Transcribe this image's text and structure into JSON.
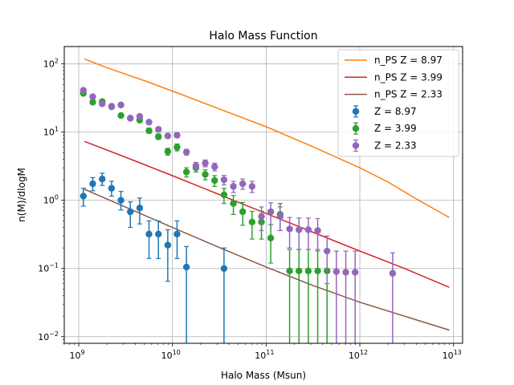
{
  "chart_data": {
    "type": "scatter",
    "title": "Halo Mass Function",
    "xlabel": "Halo Mass (Msun)",
    "ylabel": "n(M)/dlogM",
    "xscale": "log",
    "yscale": "log",
    "xlim": [
      700000000.0,
      12500000000000.0
    ],
    "ylim": [
      0.008,
      180
    ],
    "grid": true,
    "legend_position": "top-right",
    "x_ticks": [
      {
        "value": 1000000000.0,
        "base": "10",
        "exp": "9"
      },
      {
        "value": 10000000000.0,
        "base": "10",
        "exp": "10"
      },
      {
        "value": 100000000000.0,
        "base": "10",
        "exp": "11"
      },
      {
        "value": 1000000000000.0,
        "base": "10",
        "exp": "12"
      },
      {
        "value": 10000000000000.0,
        "base": "10",
        "exp": "13"
      }
    ],
    "y_ticks": [
      {
        "value": 0.01,
        "base": "10",
        "exp": "−2"
      },
      {
        "value": 0.1,
        "base": "10",
        "exp": "−1"
      },
      {
        "value": 1,
        "base": "10",
        "exp": "0"
      },
      {
        "value": 10,
        "base": "10",
        "exp": "1"
      },
      {
        "value": 100,
        "base": "10",
        "exp": "2"
      }
    ],
    "lines": [
      {
        "name": "n_PS Z = 8.97",
        "color": "#ff7f0e",
        "x": [
          1150000000.0,
          2000000000.0,
          5000000000.0,
          10000000000.0,
          30000000000.0,
          100000000000.0,
          300000000000.0,
          1000000000000.0,
          2000000000000.0,
          4000000000000.0,
          9000000000000.0
        ],
        "y": [
          118,
          88,
          57,
          40,
          22.5,
          12,
          6.3,
          3.0,
          1.85,
          1.05,
          0.56
        ]
      },
      {
        "name": "n_PS Z = 3.99",
        "color": "#d62728",
        "x": [
          1150000000.0,
          3000000000.0,
          10000000000.0,
          30000000000.0,
          100000000000.0,
          300000000000.0,
          1000000000000.0,
          3000000000000.0,
          9000000000000.0
        ],
        "y": [
          7.3,
          4.4,
          2.3,
          1.25,
          0.64,
          0.35,
          0.18,
          0.1,
          0.053
        ]
      },
      {
        "name": "n_PS Z = 2.33",
        "color": "#8c564b",
        "x": [
          1150000000.0,
          3000000000.0,
          10000000000.0,
          30000000000.0,
          100000000000.0,
          300000000000.0,
          1000000000000.0,
          3000000000000.0,
          9000000000000.0
        ],
        "y": [
          1.45,
          0.82,
          0.4,
          0.21,
          0.105,
          0.058,
          0.032,
          0.02,
          0.0125
        ]
      }
    ],
    "series": [
      {
        "name": "Z = 8.97",
        "color": "#1f77b4",
        "points": [
          {
            "x": 1120000000.0,
            "y": 1.15,
            "lo": 0.82,
            "hi": 1.5
          },
          {
            "x": 1410000000.0,
            "y": 1.75,
            "lo": 1.38,
            "hi": 2.15
          },
          {
            "x": 1780000000.0,
            "y": 2.05,
            "lo": 1.65,
            "hi": 2.5
          },
          {
            "x": 2240000000.0,
            "y": 1.5,
            "lo": 1.15,
            "hi": 1.9
          },
          {
            "x": 2820000000.0,
            "y": 1.0,
            "lo": 0.72,
            "hi": 1.35
          },
          {
            "x": 3550000000.0,
            "y": 0.68,
            "lo": 0.4,
            "hi": 0.95
          },
          {
            "x": 4470000000.0,
            "y": 0.77,
            "lo": 0.45,
            "hi": 1.08
          },
          {
            "x": 5620000000.0,
            "y": 0.32,
            "lo": 0.14,
            "hi": 0.5
          },
          {
            "x": 7080000000.0,
            "y": 0.32,
            "lo": 0.14,
            "hi": 0.5
          },
          {
            "x": 8910000000.0,
            "y": 0.22,
            "lo": 0.065,
            "hi": 0.37
          },
          {
            "x": 11200000000.0,
            "y": 0.32,
            "lo": 0.14,
            "hi": 0.5
          },
          {
            "x": 14100000000.0,
            "y": 0.105,
            "lo": 0.008,
            "hi": 0.21
          },
          {
            "x": 35500000000.0,
            "y": 0.1,
            "lo": 0.008,
            "hi": 0.2
          }
        ]
      },
      {
        "name": "Z = 3.99",
        "color": "#2ca02c",
        "points": [
          {
            "x": 1120000000.0,
            "y": 37,
            "lo": 35,
            "hi": 39
          },
          {
            "x": 1410000000.0,
            "y": 27.5,
            "lo": 26,
            "hi": 29
          },
          {
            "x": 1780000000.0,
            "y": 28,
            "lo": 26.5,
            "hi": 29.5
          },
          {
            "x": 2240000000.0,
            "y": 23.5,
            "lo": 22,
            "hi": 25
          },
          {
            "x": 2820000000.0,
            "y": 17.5,
            "lo": 16.5,
            "hi": 18.5
          },
          {
            "x": 3550000000.0,
            "y": 16,
            "lo": 15,
            "hi": 17
          },
          {
            "x": 4470000000.0,
            "y": 15,
            "lo": 14,
            "hi": 16
          },
          {
            "x": 5620000000.0,
            "y": 10.5,
            "lo": 9.6,
            "hi": 11.4
          },
          {
            "x": 7080000000.0,
            "y": 8.6,
            "lo": 7.8,
            "hi": 9.4
          },
          {
            "x": 8910000000.0,
            "y": 5.2,
            "lo": 4.6,
            "hi": 5.8
          },
          {
            "x": 11200000000.0,
            "y": 6.0,
            "lo": 5.3,
            "hi": 6.7
          },
          {
            "x": 14100000000.0,
            "y": 2.6,
            "lo": 2.2,
            "hi": 3.0
          },
          {
            "x": 17800000000.0,
            "y": 3.0,
            "lo": 2.6,
            "hi": 3.4
          },
          {
            "x": 22400000000.0,
            "y": 2.4,
            "lo": 2.0,
            "hi": 2.8
          },
          {
            "x": 28200000000.0,
            "y": 1.95,
            "lo": 1.6,
            "hi": 2.3
          },
          {
            "x": 35500000000.0,
            "y": 1.2,
            "lo": 0.9,
            "hi": 1.5
          },
          {
            "x": 44700000000.0,
            "y": 0.9,
            "lo": 0.62,
            "hi": 1.18
          },
          {
            "x": 56200000000.0,
            "y": 0.68,
            "lo": 0.43,
            "hi": 0.93
          },
          {
            "x": 70800000000.0,
            "y": 0.48,
            "lo": 0.27,
            "hi": 0.69
          },
          {
            "x": 89100000000.0,
            "y": 0.48,
            "lo": 0.27,
            "hi": 0.69
          },
          {
            "x": 112000000000.0,
            "y": 0.28,
            "lo": 0.12,
            "hi": 0.44
          },
          {
            "x": 141000000000.0,
            "y": 0.62,
            "lo": 0.36,
            "hi": 0.9
          },
          {
            "x": 178000000000.0,
            "y": 0.092,
            "lo": 0.008,
            "hi": 0.19
          },
          {
            "x": 224000000000.0,
            "y": 0.092,
            "lo": 0.008,
            "hi": 0.19
          },
          {
            "x": 282000000000.0,
            "y": 0.092,
            "lo": 0.008,
            "hi": 0.19
          },
          {
            "x": 355000000000.0,
            "y": 0.092,
            "lo": 0.008,
            "hi": 0.19
          },
          {
            "x": 447000000000.0,
            "y": 0.092,
            "lo": 0.008,
            "hi": 0.19
          }
        ]
      },
      {
        "name": "Z = 2.33",
        "color": "#9467bd",
        "points": [
          {
            "x": 1120000000.0,
            "y": 41,
            "lo": 39,
            "hi": 43
          },
          {
            "x": 1410000000.0,
            "y": 33,
            "lo": 31.5,
            "hi": 34.5
          },
          {
            "x": 1780000000.0,
            "y": 26,
            "lo": 24.5,
            "hi": 27.5
          },
          {
            "x": 2240000000.0,
            "y": 24,
            "lo": 22.5,
            "hi": 25.5
          },
          {
            "x": 2820000000.0,
            "y": 25,
            "lo": 23.5,
            "hi": 26.5
          },
          {
            "x": 3550000000.0,
            "y": 16,
            "lo": 15,
            "hi": 17
          },
          {
            "x": 4470000000.0,
            "y": 17,
            "lo": 16,
            "hi": 18
          },
          {
            "x": 5620000000.0,
            "y": 14,
            "lo": 13,
            "hi": 15
          },
          {
            "x": 7080000000.0,
            "y": 11,
            "lo": 10.2,
            "hi": 11.8
          },
          {
            "x": 8910000000.0,
            "y": 8.8,
            "lo": 8.1,
            "hi": 9.5
          },
          {
            "x": 11200000000.0,
            "y": 9.0,
            "lo": 8.3,
            "hi": 9.7
          },
          {
            "x": 14100000000.0,
            "y": 5.1,
            "lo": 4.6,
            "hi": 5.6
          },
          {
            "x": 17800000000.0,
            "y": 3.2,
            "lo": 2.8,
            "hi": 3.6
          },
          {
            "x": 22400000000.0,
            "y": 3.5,
            "lo": 3.1,
            "hi": 3.9
          },
          {
            "x": 28200000000.0,
            "y": 3.1,
            "lo": 2.7,
            "hi": 3.5
          },
          {
            "x": 35500000000.0,
            "y": 2.0,
            "lo": 1.68,
            "hi": 2.32
          },
          {
            "x": 44700000000.0,
            "y": 1.6,
            "lo": 1.3,
            "hi": 1.9
          },
          {
            "x": 56200000000.0,
            "y": 1.75,
            "lo": 1.45,
            "hi": 2.05
          },
          {
            "x": 70800000000.0,
            "y": 1.6,
            "lo": 1.3,
            "hi": 1.9
          },
          {
            "x": 89100000000.0,
            "y": 0.58,
            "lo": 0.36,
            "hi": 0.8
          },
          {
            "x": 112000000000.0,
            "y": 0.68,
            "lo": 0.44,
            "hi": 0.92
          },
          {
            "x": 141000000000.0,
            "y": 0.58,
            "lo": 0.36,
            "hi": 0.8
          },
          {
            "x": 178000000000.0,
            "y": 0.38,
            "lo": 0.2,
            "hi": 0.56
          },
          {
            "x": 224000000000.0,
            "y": 0.37,
            "lo": 0.19,
            "hi": 0.55
          },
          {
            "x": 282000000000.0,
            "y": 0.37,
            "lo": 0.19,
            "hi": 0.55
          },
          {
            "x": 355000000000.0,
            "y": 0.36,
            "lo": 0.18,
            "hi": 0.54
          },
          {
            "x": 447000000000.0,
            "y": 0.18,
            "lo": 0.06,
            "hi": 0.3
          },
          {
            "x": 562000000000.0,
            "y": 0.09,
            "lo": 0.008,
            "hi": 0.18
          },
          {
            "x": 708000000000.0,
            "y": 0.088,
            "lo": 0.008,
            "hi": 0.18
          },
          {
            "x": 891000000000.0,
            "y": 0.088,
            "lo": 0.008,
            "hi": 0.18
          },
          {
            "x": 2240000000000.0,
            "y": 0.085,
            "lo": 0.008,
            "hi": 0.17
          }
        ]
      }
    ]
  }
}
